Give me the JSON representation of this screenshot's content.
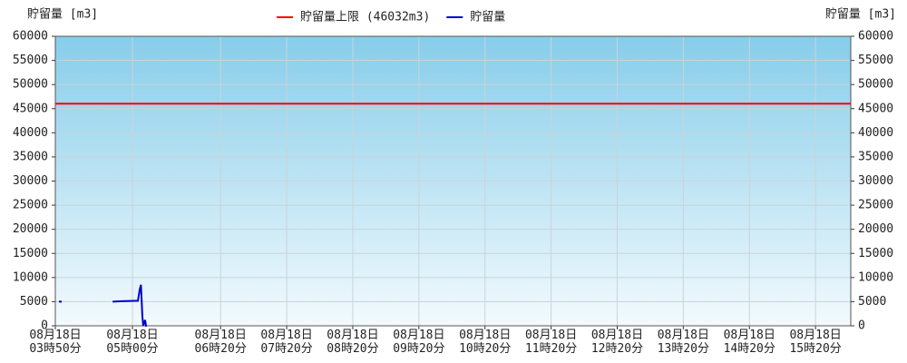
{
  "chart_data": {
    "type": "line",
    "y_label": "貯留量 [m3]",
    "y2_label": "貯留量 [m3]",
    "xlim": [
      230,
      952
    ],
    "xticks": [
      {
        "value": 230,
        "label": "08月18日\n03時50分"
      },
      {
        "value": 300,
        "label": "08月18日\n05時00分"
      },
      {
        "value": 380,
        "label": "08月18日\n06時20分"
      },
      {
        "value": 440,
        "label": "08月18日\n07時20分"
      },
      {
        "value": 500,
        "label": "08月18日\n08時20分"
      },
      {
        "value": 560,
        "label": "08月18日\n09時20分"
      },
      {
        "value": 620,
        "label": "08月18日\n10時20分"
      },
      {
        "value": 680,
        "label": "08月18日\n11時20分"
      },
      {
        "value": 740,
        "label": "08月18日\n12時20分"
      },
      {
        "value": 800,
        "label": "08月18日\n13時20分"
      },
      {
        "value": 860,
        "label": "08月18日\n14時20分"
      },
      {
        "value": 920,
        "label": "08月18日\n15時20分"
      }
    ],
    "ylim": [
      0,
      60000
    ],
    "yticks": [
      0,
      5000,
      10000,
      15000,
      20000,
      25000,
      30000,
      35000,
      40000,
      45000,
      50000,
      55000,
      60000
    ],
    "y2lim": [
      0,
      60000
    ],
    "y2ticks": [
      0,
      5000,
      10000,
      15000,
      20000,
      25000,
      30000,
      35000,
      40000,
      45000,
      50000,
      55000,
      60000
    ],
    "grid": true,
    "hline": {
      "name": "貯留量上限 (46032m3)",
      "value": 46032,
      "color": "#ff0000"
    },
    "x": [
      233.3,
      235.8,
      260,
      282,
      291,
      305,
      306.6,
      307.7,
      309,
      309.8,
      311.5,
      312.3,
      313
    ],
    "series": [
      {
        "name": "貯留量",
        "color": "#0000cc",
        "values": [
          5000,
          5000,
          null,
          5000,
          5100,
          5200,
          7500,
          8500,
          2000,
          0,
          1200,
          0,
          0
        ]
      }
    ]
  }
}
